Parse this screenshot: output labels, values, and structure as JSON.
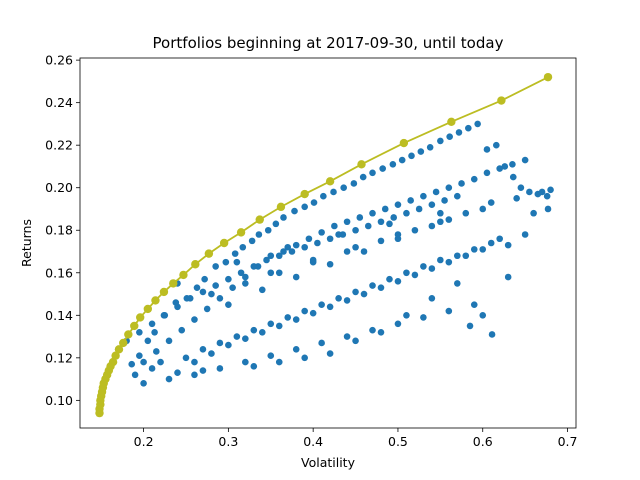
{
  "chart_data": {
    "type": "scatter",
    "title": "Portfolios beginning at 2017-09-30, until today",
    "xlabel": "Volatility",
    "ylabel": "Returns",
    "xlim": [
      0.125,
      0.71
    ],
    "ylim": [
      0.087,
      0.261
    ],
    "xticks": [
      0.2,
      0.3,
      0.4,
      0.5,
      0.6,
      0.7
    ],
    "xtick_labels": [
      "0.2",
      "0.3",
      "0.4",
      "0.5",
      "0.6",
      "0.7"
    ],
    "yticks": [
      0.1,
      0.12,
      0.14,
      0.16,
      0.18,
      0.2,
      0.22,
      0.24,
      0.26
    ],
    "ytick_labels": [
      "0.10",
      "0.12",
      "0.14",
      "0.16",
      "0.18",
      "0.20",
      "0.22",
      "0.24",
      "0.26"
    ],
    "grid": false,
    "legend": "none",
    "colors": {
      "scatter": "#1f77b4",
      "frontier": "#bcbd22"
    },
    "series": [
      {
        "kind": "scatter",
        "color": "#1f77b4",
        "x": [
          0.186,
          0.195,
          0.205,
          0.213,
          0.224,
          0.238,
          0.251,
          0.263,
          0.272,
          0.285,
          0.297,
          0.308,
          0.317,
          0.328,
          0.336,
          0.347,
          0.356,
          0.365,
          0.378,
          0.39,
          0.401,
          0.412,
          0.424,
          0.436,
          0.448,
          0.459,
          0.47,
          0.482,
          0.494,
          0.505,
          0.516,
          0.527,
          0.538,
          0.55,
          0.561,
          0.572,
          0.583,
          0.594,
          0.605,
          0.616,
          0.626,
          0.636,
          0.645,
          0.655,
          0.665,
          0.676,
          0.677,
          0.585,
          0.6,
          0.63,
          0.611,
          0.25,
          0.27,
          0.29,
          0.31,
          0.33,
          0.35,
          0.37,
          0.39,
          0.41,
          0.43,
          0.45,
          0.47,
          0.49,
          0.51,
          0.53,
          0.55,
          0.57,
          0.59,
          0.61,
          0.62,
          0.22,
          0.24,
          0.26,
          0.28,
          0.3,
          0.32,
          0.34,
          0.36,
          0.38,
          0.4,
          0.42,
          0.44,
          0.46,
          0.48,
          0.5,
          0.52,
          0.54,
          0.56,
          0.58,
          0.6,
          0.63,
          0.65,
          0.2,
          0.23,
          0.26,
          0.29,
          0.32,
          0.35,
          0.38,
          0.41,
          0.44,
          0.47,
          0.5,
          0.53,
          0.56,
          0.59,
          0.19,
          0.21,
          0.27,
          0.33,
          0.36,
          0.39,
          0.42,
          0.45,
          0.48,
          0.51,
          0.54,
          0.57,
          0.3,
          0.34,
          0.38,
          0.42,
          0.46,
          0.5,
          0.54,
          0.58,
          0.35,
          0.4,
          0.45,
          0.5,
          0.55,
          0.28,
          0.32,
          0.36,
          0.4,
          0.44,
          0.48,
          0.52,
          0.56,
          0.6,
          0.64,
          0.66,
          0.68,
          0.2,
          0.215,
          0.23,
          0.245,
          0.26,
          0.275,
          0.29,
          0.305,
          0.32,
          0.335,
          0.35,
          0.365,
          0.38,
          0.395,
          0.41,
          0.425,
          0.44,
          0.455,
          0.47,
          0.485,
          0.5,
          0.515,
          0.53,
          0.545,
          0.56,
          0.575,
          0.59,
          0.605,
          0.62,
          0.635,
          0.65,
          0.17,
          0.18,
          0.195,
          0.21,
          0.225,
          0.24,
          0.255,
          0.27,
          0.285,
          0.3,
          0.315,
          0.33,
          0.345,
          0.36,
          0.375,
          0.39,
          0.405,
          0.42,
          0.435,
          0.45,
          0.465,
          0.48,
          0.495,
          0.51,
          0.525,
          0.54,
          0.555,
          0.57,
          0.24,
          0.31,
          0.37,
          0.43,
          0.49,
          0.55,
          0.61,
          0.67
        ],
        "y": [
          0.117,
          0.121,
          0.128,
          0.132,
          0.14,
          0.146,
          0.148,
          0.153,
          0.157,
          0.163,
          0.165,
          0.169,
          0.172,
          0.175,
          0.178,
          0.18,
          0.183,
          0.186,
          0.189,
          0.191,
          0.193,
          0.196,
          0.198,
          0.2,
          0.202,
          0.205,
          0.207,
          0.209,
          0.211,
          0.213,
          0.215,
          0.217,
          0.219,
          0.222,
          0.224,
          0.226,
          0.228,
          0.23,
          0.218,
          0.22,
          0.21,
          0.205,
          0.2,
          0.198,
          0.197,
          0.196,
          0.19,
          0.135,
          0.14,
          0.158,
          0.131,
          0.12,
          0.124,
          0.127,
          0.13,
          0.133,
          0.136,
          0.139,
          0.142,
          0.145,
          0.148,
          0.151,
          0.154,
          0.157,
          0.16,
          0.163,
          0.166,
          0.168,
          0.171,
          0.174,
          0.176,
          0.118,
          0.113,
          0.118,
          0.122,
          0.126,
          0.129,
          0.132,
          0.135,
          0.138,
          0.141,
          0.144,
          0.147,
          0.15,
          0.153,
          0.156,
          0.159,
          0.162,
          0.165,
          0.168,
          0.171,
          0.173,
          0.178,
          0.108,
          0.11,
          0.112,
          0.115,
          0.118,
          0.121,
          0.124,
          0.127,
          0.13,
          0.133,
          0.136,
          0.139,
          0.142,
          0.145,
          0.112,
          0.115,
          0.114,
          0.116,
          0.118,
          0.12,
          0.122,
          0.128,
          0.132,
          0.14,
          0.148,
          0.155,
          0.145,
          0.152,
          0.158,
          0.164,
          0.17,
          0.176,
          0.182,
          0.188,
          0.16,
          0.166,
          0.172,
          0.178,
          0.184,
          0.15,
          0.155,
          0.16,
          0.165,
          0.17,
          0.175,
          0.18,
          0.185,
          0.19,
          0.195,
          0.188,
          0.199,
          0.118,
          0.123,
          0.128,
          0.133,
          0.138,
          0.143,
          0.148,
          0.153,
          0.158,
          0.163,
          0.168,
          0.17,
          0.173,
          0.176,
          0.179,
          0.182,
          0.184,
          0.186,
          0.188,
          0.19,
          0.192,
          0.194,
          0.196,
          0.198,
          0.2,
          0.202,
          0.204,
          0.207,
          0.209,
          0.211,
          0.213,
          0.124,
          0.128,
          0.132,
          0.136,
          0.14,
          0.144,
          0.148,
          0.151,
          0.154,
          0.157,
          0.16,
          0.163,
          0.166,
          0.168,
          0.17,
          0.172,
          0.174,
          0.176,
          0.178,
          0.18,
          0.182,
          0.184,
          0.186,
          0.188,
          0.19,
          0.192,
          0.194,
          0.196,
          0.155,
          0.165,
          0.172,
          0.178,
          0.183,
          0.188,
          0.193,
          0.198
        ]
      },
      {
        "kind": "line-with-markers",
        "color": "#bcbd22",
        "x": [
          0.148,
          0.148,
          0.149,
          0.149,
          0.15,
          0.151,
          0.152,
          0.153,
          0.155,
          0.157,
          0.159,
          0.161,
          0.164,
          0.167,
          0.171,
          0.176,
          0.182,
          0.189,
          0.196,
          0.205,
          0.214,
          0.224,
          0.235,
          0.247,
          0.261,
          0.277,
          0.295,
          0.315,
          0.337,
          0.362,
          0.39,
          0.42,
          0.457,
          0.507,
          0.563,
          0.622,
          0.677
        ],
        "y": [
          0.094,
          0.096,
          0.098,
          0.1,
          0.102,
          0.104,
          0.106,
          0.108,
          0.11,
          0.112,
          0.114,
          0.116,
          0.118,
          0.121,
          0.124,
          0.127,
          0.131,
          0.135,
          0.139,
          0.143,
          0.147,
          0.151,
          0.155,
          0.159,
          0.164,
          0.169,
          0.174,
          0.179,
          0.185,
          0.191,
          0.197,
          0.203,
          0.211,
          0.221,
          0.231,
          0.241,
          0.252
        ]
      }
    ]
  }
}
